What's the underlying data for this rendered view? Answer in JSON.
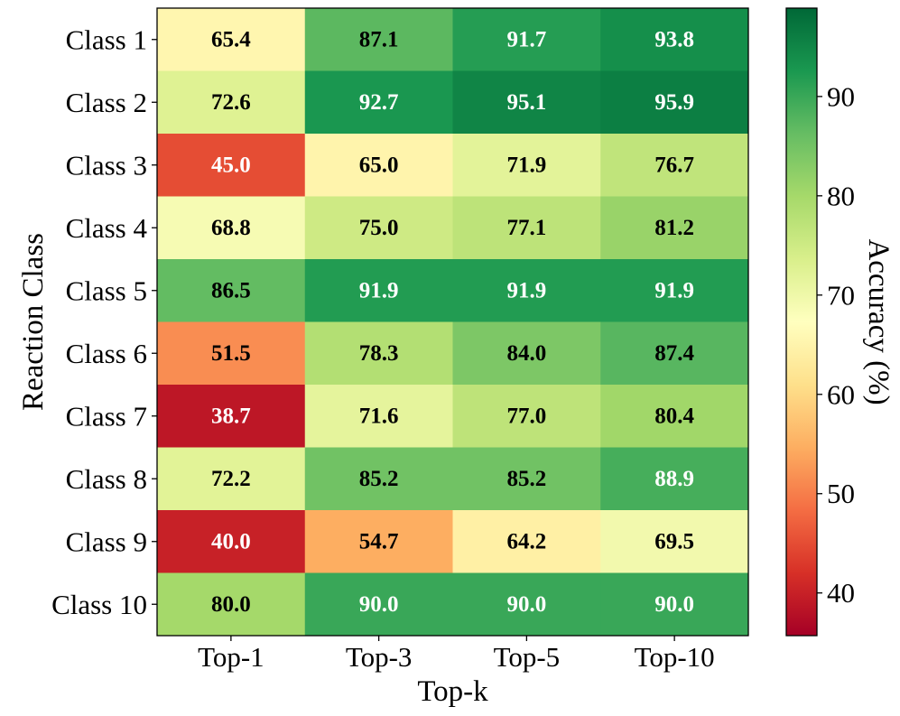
{
  "chart_data": {
    "type": "heatmap",
    "title": "",
    "xlabel": "Top-k",
    "ylabel": "Reaction Class",
    "x_categories": [
      "Top-1",
      "Top-3",
      "Top-5",
      "Top-10"
    ],
    "y_categories": [
      "Class 1",
      "Class 2",
      "Class 3",
      "Class 4",
      "Class 5",
      "Class 6",
      "Class 7",
      "Class 8",
      "Class 9",
      "Class 10"
    ],
    "values": [
      [
        65.4,
        87.1,
        91.7,
        93.8
      ],
      [
        72.6,
        92.7,
        95.1,
        95.9
      ],
      [
        45.0,
        65.0,
        71.9,
        76.7
      ],
      [
        68.8,
        75.0,
        77.1,
        81.2
      ],
      [
        86.5,
        91.9,
        91.9,
        91.9
      ],
      [
        51.5,
        78.3,
        84.0,
        87.4
      ],
      [
        38.7,
        71.6,
        77.0,
        80.4
      ],
      [
        72.2,
        85.2,
        85.2,
        88.9
      ],
      [
        40.0,
        54.7,
        64.2,
        69.5
      ],
      [
        80.0,
        90.0,
        90.0,
        90.0
      ]
    ],
    "value_format": "0.1f",
    "colormap": "RdYlGn",
    "vmin": 35.7,
    "vmax": 98.9,
    "colorbar": {
      "label": "Accuracy (%)",
      "ticks": [
        40,
        50,
        60,
        70,
        80,
        90
      ]
    }
  }
}
